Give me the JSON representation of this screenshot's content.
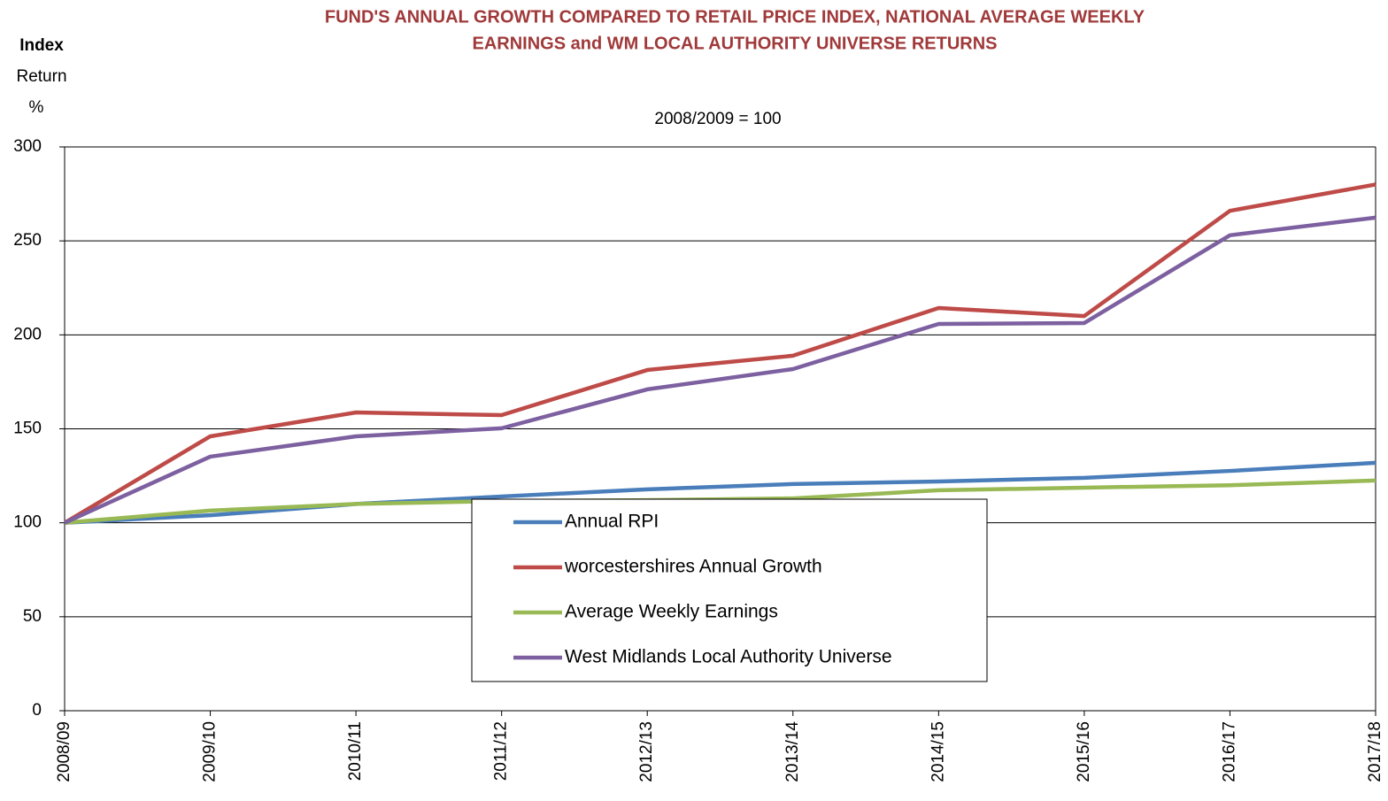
{
  "chart_data": {
    "type": "line",
    "title": [
      "FUND'S ANNUAL GROWTH COMPARED TO RETAIL PRICE INDEX, NATIONAL AVERAGE WEEKLY",
      "EARNINGS and WM LOCAL AUTHORITY UNIVERSE RETURNS"
    ],
    "subtitle": "2008/2009 = 100",
    "ylabel": [
      "Index",
      "Return",
      "%"
    ],
    "categories": [
      "2008/09",
      "2009/10",
      "2010/11",
      "2011/12",
      "2012/13",
      "2013/14",
      "2014/15",
      "2015/16",
      "2016/17",
      "2017/18"
    ],
    "series": [
      {
        "name": "Annual RPI",
        "color": "#4a7ebb",
        "values": [
          100,
          104,
          110,
          114,
          117.8,
          120.6,
          122,
          123.9,
          127.6,
          131.9
        ]
      },
      {
        "name": "worcestershires Annual Growth",
        "color": "#be4b48",
        "values": [
          100,
          146,
          158.7,
          157.3,
          181.3,
          188.9,
          214.3,
          210,
          266,
          280
        ]
      },
      {
        "name": "Average Weekly Earnings",
        "color": "#98b954",
        "values": [
          100,
          106.5,
          110,
          111.6,
          112,
          113,
          117.3,
          118.7,
          120,
          122.5
        ]
      },
      {
        "name": "West Midlands Local Authority Universe",
        "color": "#7d60a0",
        "values": [
          100,
          135.2,
          146,
          150.3,
          171,
          181.8,
          205.8,
          206.3,
          253,
          262.4
        ]
      }
    ],
    "ylim": [
      0,
      300
    ],
    "yticks": [
      0,
      50,
      100,
      150,
      200,
      250,
      300
    ],
    "grid": true,
    "legend": "center"
  }
}
